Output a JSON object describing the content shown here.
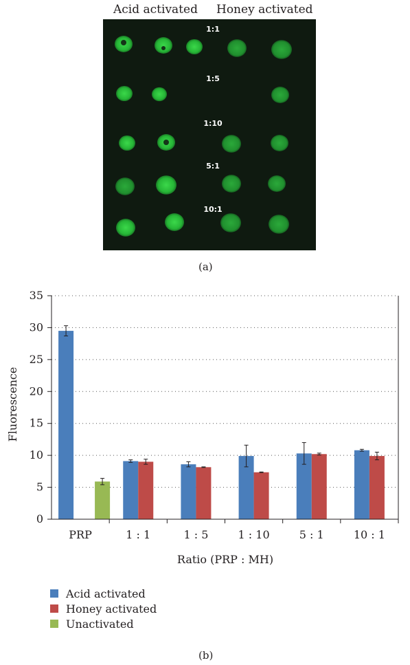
{
  "panel_a": {
    "headers": [
      "Acid activated",
      "Honey activated"
    ],
    "row_labels": [
      "1:1",
      "1:5",
      "1:10",
      "5:1",
      "10:1"
    ],
    "caption": "(a)"
  },
  "panel_b_caption": "(b)",
  "colors": {
    "acid": "#4a7ebb",
    "honey": "#be4b48",
    "unactivated": "#98b954",
    "micrograph_bg": "#0f1a10",
    "spot": "#2fc43d"
  },
  "chart_data": {
    "type": "bar",
    "categories": [
      "PRP",
      "1 : 1",
      "1 : 5",
      "1 : 10",
      "5 : 1",
      "10 : 1"
    ],
    "series": [
      {
        "name": "Acid activated",
        "values": [
          29.5,
          9.1,
          8.6,
          9.9,
          10.3,
          10.8
        ],
        "errors": [
          0.8,
          0.2,
          0.4,
          1.7,
          1.7,
          0.15
        ]
      },
      {
        "name": "Honey activated",
        "values": [
          null,
          9.0,
          8.15,
          7.35,
          10.2,
          9.9
        ],
        "errors": [
          null,
          0.4,
          0.05,
          0.05,
          0.15,
          0.6
        ]
      },
      {
        "name": "Unactivated",
        "values": [
          5.9,
          null,
          null,
          null,
          null,
          null
        ],
        "errors": [
          0.5,
          null,
          null,
          null,
          null,
          null
        ]
      }
    ],
    "title": "",
    "xlabel": "Ratio (PRP : MH)",
    "ylabel": "Fluorescence",
    "ylim": [
      0,
      35
    ],
    "yticks": [
      "0",
      "5",
      "10",
      "15",
      "20",
      "25",
      "30",
      "35"
    ],
    "grid": true,
    "legend_position": "bottom-left"
  }
}
